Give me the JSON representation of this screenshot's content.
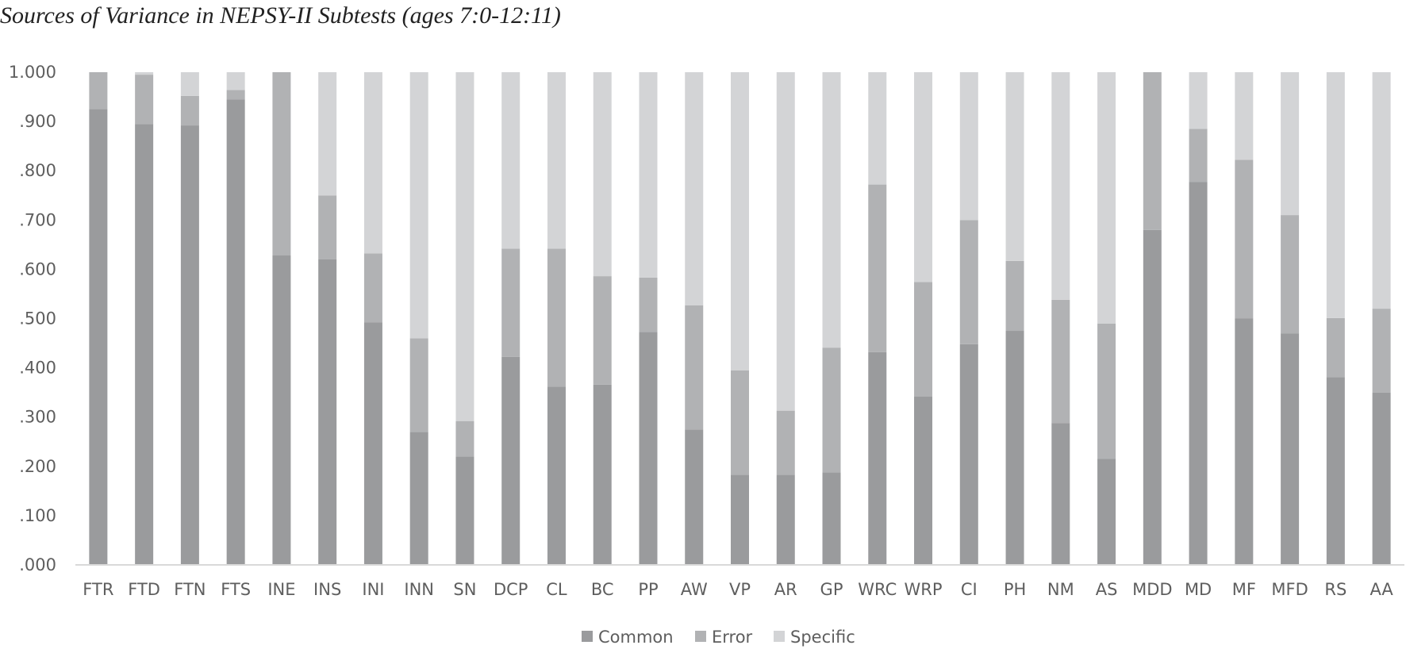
{
  "chart_data": {
    "type": "bar",
    "stacked": true,
    "title": "Sources of Variance in NEPSY-II Subtests (ages 7:0-12:11)",
    "xlabel": "",
    "ylabel": "",
    "ylim": [
      0,
      1
    ],
    "yticks": [
      ".000",
      ".100",
      ".200",
      ".300",
      ".400",
      ".500",
      ".600",
      ".700",
      ".800",
      ".900",
      "1.000"
    ],
    "grid": false,
    "legend_position": "bottom",
    "categories": [
      "FTR",
      "FTD",
      "FTN",
      "FTS",
      "INE",
      "INS",
      "INI",
      "INN",
      "SN",
      "DCP",
      "CL",
      "BC",
      "PP",
      "AW",
      "VP",
      "AR",
      "GP",
      "WRC",
      "WRP",
      "CI",
      "PH",
      "NM",
      "AS",
      "MDD",
      "MD",
      "MF",
      "MFD",
      "RS",
      "AA"
    ],
    "series": [
      {
        "name": "Common",
        "color": "#9a9b9d",
        "values": [
          0.925,
          0.895,
          0.892,
          0.945,
          0.628,
          0.62,
          0.492,
          0.27,
          0.22,
          0.422,
          0.362,
          0.366,
          0.473,
          0.275,
          0.183,
          0.183,
          0.188,
          0.432,
          0.342,
          0.448,
          0.475,
          0.288,
          0.215,
          0.68,
          0.777,
          0.5,
          0.47,
          0.381,
          0.35
        ]
      },
      {
        "name": "Error",
        "color": "#b1b2b4",
        "values": [
          0.075,
          0.1,
          0.06,
          0.019,
          0.372,
          0.13,
          0.14,
          0.19,
          0.072,
          0.22,
          0.28,
          0.22,
          0.11,
          0.252,
          0.212,
          0.13,
          0.253,
          0.34,
          0.232,
          0.252,
          0.142,
          0.25,
          0.275,
          0.32,
          0.108,
          0.322,
          0.24,
          0.12,
          0.17
        ]
      },
      {
        "name": "Specific",
        "color": "#d3d4d6",
        "values": [
          0.0,
          0.005,
          0.048,
          0.036,
          0.0,
          0.25,
          0.368,
          0.54,
          0.708,
          0.358,
          0.358,
          0.414,
          0.417,
          0.473,
          0.605,
          0.687,
          0.559,
          0.228,
          0.426,
          0.3,
          0.383,
          0.462,
          0.51,
          0.0,
          0.115,
          0.178,
          0.29,
          0.499,
          0.48
        ]
      }
    ]
  }
}
